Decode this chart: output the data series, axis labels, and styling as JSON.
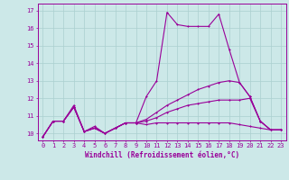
{
  "background_color": "#cce8e8",
  "grid_color": "#aacfcf",
  "line_color": "#990099",
  "xlabel": "Windchill (Refroidissement éolien,°C)",
  "xlabel_fontsize": 5.5,
  "tick_fontsize": 5,
  "xlim": [
    -0.5,
    23.5
  ],
  "ylim": [
    9.6,
    17.4
  ],
  "yticks": [
    10,
    11,
    12,
    13,
    14,
    15,
    16,
    17
  ],
  "xticks": [
    0,
    1,
    2,
    3,
    4,
    5,
    6,
    7,
    8,
    9,
    10,
    11,
    12,
    13,
    14,
    15,
    16,
    17,
    18,
    19,
    20,
    21,
    22,
    23
  ],
  "line1": [
    9.8,
    10.7,
    10.7,
    11.6,
    10.1,
    10.4,
    10.0,
    10.3,
    10.6,
    10.6,
    12.1,
    13.0,
    16.9,
    16.2,
    16.1,
    16.1,
    16.1,
    16.8,
    14.8,
    12.9,
    12.1,
    10.7,
    10.2,
    10.2
  ],
  "line2": [
    9.8,
    10.7,
    10.7,
    11.5,
    10.1,
    10.3,
    10.0,
    10.3,
    10.6,
    10.6,
    10.5,
    10.6,
    10.6,
    10.6,
    10.6,
    10.6,
    10.6,
    10.6,
    10.6,
    10.5,
    10.4,
    10.3,
    10.2,
    10.2
  ],
  "line3": [
    9.8,
    10.7,
    10.7,
    11.5,
    10.1,
    10.3,
    10.0,
    10.3,
    10.6,
    10.6,
    10.7,
    10.9,
    11.2,
    11.4,
    11.6,
    11.7,
    11.8,
    11.9,
    11.9,
    11.9,
    12.0,
    10.7,
    10.2,
    10.2
  ],
  "line4": [
    9.8,
    10.7,
    10.7,
    11.5,
    10.1,
    10.3,
    10.0,
    10.3,
    10.6,
    10.6,
    10.8,
    11.2,
    11.6,
    11.9,
    12.2,
    12.5,
    12.7,
    12.9,
    13.0,
    12.9,
    12.1,
    10.7,
    10.2,
    10.2
  ],
  "figsize": [
    3.2,
    2.0
  ],
  "dpi": 100
}
